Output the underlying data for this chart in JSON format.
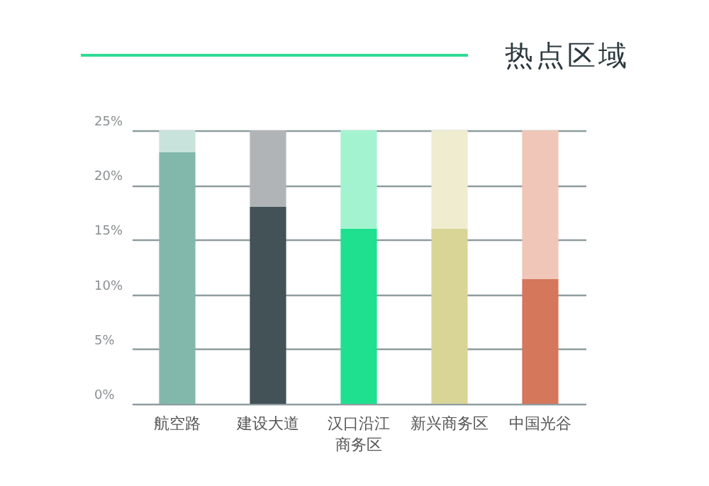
{
  "chart_data": {
    "type": "bar",
    "title": "热点区域",
    "stacked": true,
    "categories": [
      "航空路",
      "建设大道",
      "汉口沿江商务区",
      "新兴商务区",
      "中国光谷"
    ],
    "series": [
      {
        "colors": [
          "#82b8ab",
          "#435257",
          "#1ee08f",
          "#d8d597",
          "#d4775a"
        ],
        "values": [
          23,
          18,
          16,
          16,
          11.4
        ]
      },
      {
        "colors": [
          "#c8e2dc",
          "#b0b4b7",
          "#a3f3d0",
          "#efecd0",
          "#efc6b7"
        ],
        "values": [
          2,
          7,
          9,
          9,
          13.6
        ]
      }
    ],
    "ylim": [
      0,
      25
    ],
    "yticks": [
      {
        "value": 0,
        "label": "0%"
      },
      {
        "value": 5,
        "label": "5%"
      },
      {
        "value": 10,
        "label": "10%"
      },
      {
        "value": 15,
        "label": "15%"
      },
      {
        "value": 20,
        "label": "20%"
      },
      {
        "value": 25,
        "label": "25%"
      }
    ],
    "grid": "y",
    "legend": false
  }
}
